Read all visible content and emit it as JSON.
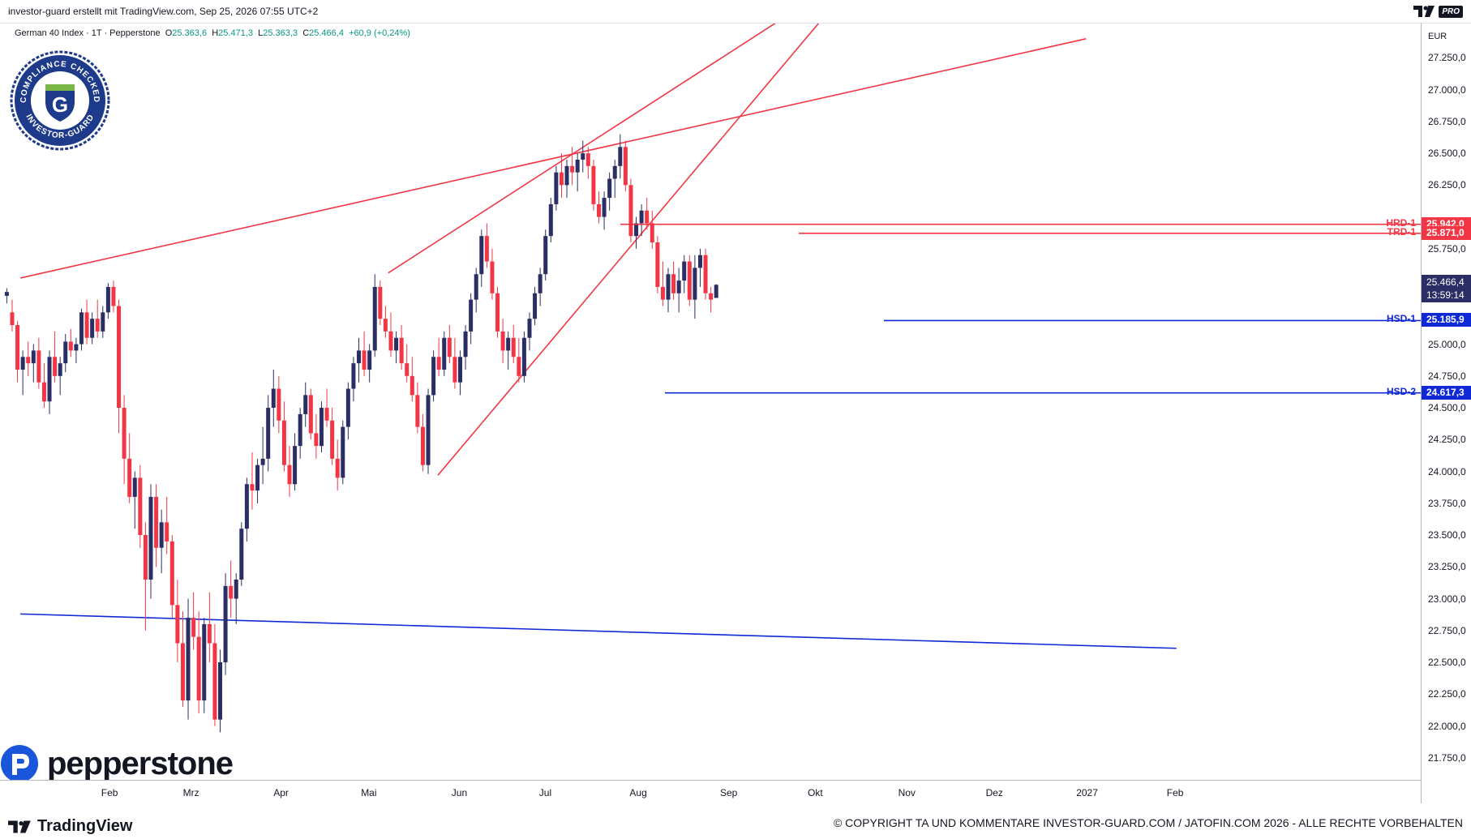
{
  "header": {
    "credit": "investor-guard erstellt mit TradingView.com, Sep 25, 2026 07:55 UTC+2",
    "tv_logo_text": "TV",
    "pro_badge": "PRO"
  },
  "legend": {
    "symbol": "German 40 Index · 1T · Pepperstone",
    "o_label": "O",
    "o_value": "25.363,6",
    "h_label": "H",
    "h_value": "25.471,3",
    "l_label": "L",
    "l_value": "25.363,3",
    "c_label": "C",
    "c_value": "25.466,4",
    "change": "+60,9 (+0,24%)"
  },
  "badge": {
    "top_text": "COMPLIANCE CHECKED",
    "bottom_text": "INVESTOR-GUARD",
    "letter": "G"
  },
  "brand": {
    "wordmark": "pepperstone"
  },
  "footer": {
    "tradingview": "TradingView",
    "copyright": "© COPYRIGHT TA UND KOMMENTARE INVESTOR-GUARD.COM / JATOFIN.COM 2026 - ALLE RECHTE VORBEHALTEN"
  },
  "price_scale": {
    "currency": "EUR",
    "last_price": "25.466,4",
    "countdown": "13:59:14"
  },
  "colors": {
    "up": "#2a2e65",
    "down": "#f23645",
    "resistance": "#f23645",
    "support": "#1029d6",
    "legend_values": "#089981"
  },
  "chart_data": {
    "type": "candlestick",
    "title": "German 40 Index · 1T · Pepperstone",
    "x_labels": [
      "Feb",
      "Mrz",
      "Apr",
      "Mai",
      "Jun",
      "Jul",
      "Aug",
      "Sep",
      "Okt",
      "Nov",
      "Dez",
      "2027",
      "Feb"
    ],
    "y_ticks": [
      21750,
      22000,
      22250,
      22500,
      22750,
      23000,
      23250,
      23500,
      23750,
      24000,
      24250,
      24500,
      24750,
      25000,
      25250,
      25500,
      25750,
      26000,
      26250,
      26500,
      26750,
      27000,
      27250
    ],
    "y_tick_labels": [
      "21.750,0",
      "22.000,0",
      "22.250,0",
      "22.500,0",
      "22.750,0",
      "23.000,0",
      "23.250,0",
      "23.500,0",
      "23.750,0",
      "24.000,0",
      "24.250,0",
      "24.500,0",
      "24.750,0",
      "25.000,0",
      "",
      "",
      "25.750,0",
      "",
      "26.250,0",
      "26.500,0",
      "26.750,0",
      "27.000,0",
      "27.250,0"
    ],
    "ylim": [
      21570,
      27520
    ],
    "grid": false,
    "levels": [
      {
        "name": "HRD-1",
        "value": 25942.0,
        "label": "25.942,0",
        "color": "#f23645"
      },
      {
        "name": "TRD-1",
        "value": 25871.0,
        "label": "25.871,0",
        "color": "#f23645"
      },
      {
        "name": "HSD-1",
        "value": 25185.9,
        "label": "25.185,9",
        "color": "#1029d6"
      },
      {
        "name": "HSD-2",
        "value": 24617.3,
        "label": "24.617,3",
        "color": "#1029d6"
      }
    ],
    "trendlines": [
      {
        "color": "#f23645",
        "points": [
          [
            "Jan 20",
            25520
          ],
          [
            "Jan 20 2027",
            27400
          ]
        ]
      },
      {
        "color": "#f23645",
        "points": [
          [
            "May 26",
            25560
          ],
          [
            "Okt 25",
            27810
          ]
        ]
      },
      {
        "color": "#f23645",
        "points": [
          [
            "Jun 12",
            23970
          ],
          [
            "Okt 31",
            27810
          ]
        ]
      },
      {
        "color": "#1029d6",
        "points": [
          [
            "Jan 20",
            22880
          ],
          [
            "Feb 20 2027",
            22610
          ]
        ]
      }
    ],
    "series": [
      {
        "name": "German 40 Index",
        "ohlc": [
          [
            25380,
            25440,
            25320,
            25410
          ],
          [
            25250,
            25350,
            25100,
            25150
          ],
          [
            25150,
            25180,
            24700,
            24800
          ],
          [
            24800,
            24950,
            24600,
            24900
          ],
          [
            24900,
            25020,
            24750,
            24850
          ],
          [
            24850,
            25000,
            24700,
            24950
          ],
          [
            24950,
            25050,
            24650,
            24700
          ],
          [
            24700,
            24850,
            24500,
            24550
          ],
          [
            24550,
            24950,
            24450,
            24900
          ],
          [
            24900,
            25100,
            24700,
            24750
          ],
          [
            24750,
            24900,
            24600,
            24850
          ],
          [
            24850,
            25080,
            24780,
            25020
          ],
          [
            25020,
            25120,
            24900,
            24950
          ],
          [
            24950,
            25050,
            24850,
            25000
          ],
          [
            25000,
            25280,
            24950,
            25250
          ],
          [
            25250,
            25350,
            25000,
            25050
          ],
          [
            25050,
            25250,
            25000,
            25200
          ],
          [
            25200,
            25350,
            25050,
            25100
          ],
          [
            25100,
            25300,
            25050,
            25250
          ],
          [
            25250,
            25480,
            25200,
            25450
          ],
          [
            25450,
            25500,
            25250,
            25300
          ],
          [
            25300,
            25350,
            24300,
            24500
          ],
          [
            24500,
            24600,
            23900,
            24100
          ],
          [
            24100,
            24300,
            23750,
            23800
          ],
          [
            23800,
            24000,
            23550,
            23950
          ],
          [
            23950,
            24050,
            23400,
            23500
          ],
          [
            23500,
            23600,
            22750,
            23150
          ],
          [
            23150,
            23900,
            23000,
            23800
          ],
          [
            23800,
            23900,
            23250,
            23400
          ],
          [
            23400,
            23700,
            23200,
            23600
          ],
          [
            23600,
            23800,
            23350,
            23450
          ],
          [
            23450,
            23500,
            22850,
            22950
          ],
          [
            22950,
            23150,
            22500,
            22650
          ],
          [
            22650,
            22900,
            22150,
            22200
          ],
          [
            22200,
            23000,
            22050,
            22850
          ],
          [
            22850,
            23050,
            22600,
            22700
          ],
          [
            22700,
            22900,
            22100,
            22200
          ],
          [
            22200,
            22850,
            22100,
            22800
          ],
          [
            22800,
            23050,
            22500,
            22650
          ],
          [
            22650,
            22800,
            22000,
            22050
          ],
          [
            22050,
            22600,
            21950,
            22500
          ],
          [
            22500,
            23200,
            22400,
            23100
          ],
          [
            23100,
            23300,
            22850,
            23000
          ],
          [
            23000,
            23200,
            22800,
            23150
          ],
          [
            23150,
            23600,
            23100,
            23550
          ],
          [
            23550,
            23950,
            23450,
            23900
          ],
          [
            23900,
            24150,
            23700,
            23850
          ],
          [
            23850,
            24100,
            23750,
            24050
          ],
          [
            24050,
            24350,
            23900,
            24100
          ],
          [
            24100,
            24600,
            24000,
            24500
          ],
          [
            24500,
            24800,
            24350,
            24650
          ],
          [
            24650,
            24750,
            24300,
            24400
          ],
          [
            24400,
            24550,
            24000,
            24050
          ],
          [
            24050,
            24200,
            23800,
            23900
          ],
          [
            23900,
            24300,
            23850,
            24200
          ],
          [
            24200,
            24500,
            24100,
            24450
          ],
          [
            24450,
            24700,
            24350,
            24600
          ],
          [
            24600,
            24650,
            24250,
            24300
          ],
          [
            24300,
            24450,
            24100,
            24200
          ],
          [
            24200,
            24550,
            24150,
            24500
          ],
          [
            24500,
            24650,
            24350,
            24400
          ],
          [
            24400,
            24500,
            24050,
            24100
          ],
          [
            24100,
            24250,
            23850,
            23950
          ],
          [
            23950,
            24400,
            23900,
            24350
          ],
          [
            24350,
            24700,
            24250,
            24650
          ],
          [
            24650,
            24900,
            24550,
            24850
          ],
          [
            24850,
            25050,
            24700,
            24950
          ],
          [
            24950,
            25100,
            24750,
            24800
          ],
          [
            24800,
            25000,
            24700,
            24950
          ],
          [
            24950,
            25550,
            24900,
            25450
          ],
          [
            25450,
            25500,
            25150,
            25200
          ],
          [
            25200,
            25300,
            25050,
            25100
          ],
          [
            25100,
            25250,
            24900,
            24950
          ],
          [
            24950,
            25100,
            24850,
            25050
          ],
          [
            25050,
            25150,
            24800,
            24850
          ],
          [
            24850,
            25000,
            24700,
            24750
          ],
          [
            24750,
            24900,
            24550,
            24600
          ],
          [
            24600,
            24700,
            24300,
            24350
          ],
          [
            24350,
            24450,
            24000,
            24050
          ],
          [
            24050,
            24650,
            23980,
            24600
          ],
          [
            24600,
            24950,
            24550,
            24900
          ],
          [
            24900,
            25050,
            24750,
            24800
          ],
          [
            24800,
            25100,
            24750,
            25050
          ],
          [
            25050,
            25150,
            24850,
            24900
          ],
          [
            24900,
            25050,
            24650,
            24700
          ],
          [
            24700,
            24950,
            24600,
            24900
          ],
          [
            24900,
            25150,
            24800,
            25100
          ],
          [
            25100,
            25400,
            25000,
            25350
          ],
          [
            25350,
            25600,
            25250,
            25550
          ],
          [
            25550,
            25900,
            25450,
            25850
          ],
          [
            25850,
            25950,
            25600,
            25650
          ],
          [
            25650,
            25750,
            25350,
            25400
          ],
          [
            25400,
            25450,
            25050,
            25100
          ],
          [
            25100,
            25200,
            24850,
            24950
          ],
          [
            24950,
            25100,
            24800,
            25050
          ],
          [
            25050,
            25150,
            24850,
            24900
          ],
          [
            24900,
            25050,
            24700,
            24750
          ],
          [
            24750,
            25100,
            24700,
            25050
          ],
          [
            25050,
            25250,
            24950,
            25200
          ],
          [
            25200,
            25450,
            25150,
            25400
          ],
          [
            25400,
            25600,
            25300,
            25550
          ],
          [
            25550,
            25900,
            25500,
            25850
          ],
          [
            25850,
            26150,
            25800,
            26100
          ],
          [
            26100,
            26400,
            26050,
            26350
          ],
          [
            26350,
            26500,
            26150,
            26250
          ],
          [
            26250,
            26450,
            26150,
            26400
          ],
          [
            26400,
            26550,
            26250,
            26350
          ],
          [
            26350,
            26500,
            26200,
            26450
          ],
          [
            26450,
            26600,
            26350,
            26500
          ],
          [
            26500,
            26550,
            26300,
            26400
          ],
          [
            26400,
            26450,
            26050,
            26100
          ],
          [
            26100,
            26200,
            25950,
            26000
          ],
          [
            26000,
            26200,
            25900,
            26150
          ],
          [
            26150,
            26350,
            26050,
            26300
          ],
          [
            26300,
            26450,
            26150,
            26400
          ],
          [
            26400,
            26650,
            26300,
            26550
          ],
          [
            26550,
            26600,
            26200,
            26250
          ],
          [
            26250,
            26300,
            25800,
            25850
          ],
          [
            25850,
            26000,
            25750,
            25950
          ],
          [
            25950,
            26100,
            25850,
            26050
          ],
          [
            26050,
            26150,
            25900,
            25950
          ],
          [
            25950,
            26050,
            25750,
            25800
          ],
          [
            25800,
            25850,
            25400,
            25450
          ],
          [
            25450,
            25650,
            25300,
            25350
          ],
          [
            25350,
            25600,
            25250,
            25550
          ],
          [
            25550,
            25650,
            25350,
            25400
          ],
          [
            25400,
            25600,
            25250,
            25500
          ],
          [
            25500,
            25700,
            25400,
            25650
          ],
          [
            25650,
            25700,
            25300,
            25350
          ],
          [
            25350,
            25700,
            25200,
            25600
          ],
          [
            25600,
            25750,
            25450,
            25700
          ],
          [
            25700,
            25750,
            25350,
            25400
          ],
          [
            25400,
            25450,
            25250,
            25350
          ],
          [
            25363.6,
            25471.3,
            25363.3,
            25466.4
          ]
        ]
      }
    ]
  }
}
